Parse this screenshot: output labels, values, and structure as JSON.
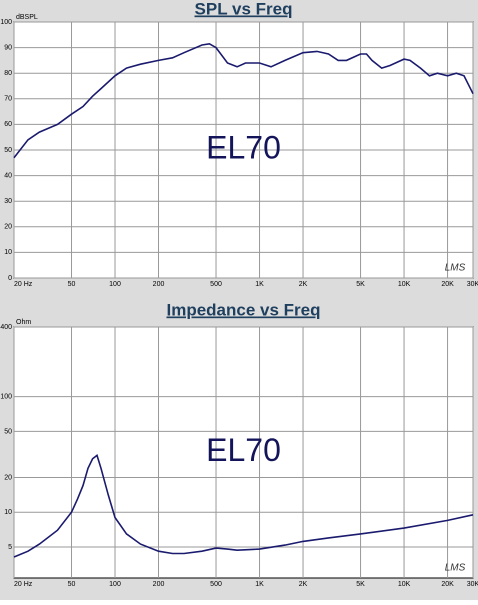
{
  "chart_data": [
    {
      "type": "line",
      "title": "SPL vs Freq",
      "ylabel": "dBSPL",
      "xscale": "log",
      "yscale": "linear",
      "grid": true,
      "xlim": [
        20,
        30000
      ],
      "ylim": [
        0,
        100
      ],
      "xticks": [
        {
          "value": 20,
          "label": "20 Hz"
        },
        50,
        100,
        200,
        500,
        {
          "value": 1000,
          "label": "1K"
        },
        {
          "value": 2000,
          "label": "2K"
        },
        {
          "value": 5000,
          "label": "5K"
        },
        {
          "value": 10000,
          "label": "10K"
        },
        {
          "value": 20000,
          "label": "20K"
        },
        {
          "value": 30000,
          "label": "30K"
        }
      ],
      "yticks": [
        0,
        10,
        20,
        30,
        40,
        50,
        60,
        70,
        80,
        90,
        100
      ],
      "x": [
        20,
        25,
        30,
        40,
        50,
        60,
        70,
        80,
        100,
        120,
        150,
        200,
        250,
        300,
        400,
        450,
        500,
        600,
        700,
        800,
        1000,
        1200,
        1500,
        2000,
        2500,
        3000,
        3500,
        4000,
        5000,
        5500,
        6000,
        7000,
        8000,
        10000,
        11000,
        13000,
        15000,
        17000,
        20000,
        23000,
        26000,
        30000
      ],
      "series": [
        {
          "color": "#1a1a6e",
          "values": [
            47,
            54,
            57,
            60,
            64,
            67,
            71,
            74,
            79,
            82,
            83.5,
            85,
            86,
            88,
            91,
            91.5,
            90,
            84,
            82.5,
            84,
            84,
            82.5,
            85,
            88,
            88.5,
            87.5,
            85,
            85,
            87.5,
            87.5,
            85,
            82,
            83,
            85.5,
            85,
            82,
            79,
            80,
            79,
            80,
            79,
            72
          ]
        }
      ],
      "annotations": [
        "EL70",
        "LMS"
      ]
    },
    {
      "type": "line",
      "title": "Impedance vs Freq",
      "ylabel": "Ohm",
      "xscale": "log",
      "yscale": "log",
      "grid": true,
      "xlim": [
        20,
        30000
      ],
      "ylim": [
        2.7,
        400
      ],
      "xticks": [
        {
          "value": 20,
          "label": "20 Hz"
        },
        50,
        100,
        200,
        500,
        {
          "value": 1000,
          "label": "1K"
        },
        {
          "value": 2000,
          "label": "2K"
        },
        {
          "value": 5000,
          "label": "5K"
        },
        {
          "value": 10000,
          "label": "10K"
        },
        {
          "value": 20000,
          "label": "20K"
        },
        {
          "value": 30000,
          "label": "30K"
        }
      ],
      "yticks": [
        5,
        10,
        20,
        50,
        100,
        400
      ],
      "x": [
        20,
        25,
        30,
        40,
        50,
        55,
        60,
        65,
        70,
        75,
        80,
        90,
        100,
        120,
        150,
        200,
        250,
        300,
        400,
        500,
        600,
        700,
        1000,
        1500,
        2000,
        3000,
        5000,
        10000,
        20000,
        30000
      ],
      "series": [
        {
          "color": "#1a1a6e",
          "values": [
            4.1,
            4.6,
            5.3,
            7,
            10,
            13,
            17,
            24,
            29,
            31,
            24,
            14,
            9,
            6.5,
            5.3,
            4.6,
            4.4,
            4.4,
            4.6,
            4.9,
            4.8,
            4.7,
            4.8,
            5.2,
            5.6,
            6,
            6.5,
            7.3,
            8.5,
            9.5
          ]
        }
      ],
      "annotations": [
        "EL70",
        "LMS"
      ]
    }
  ]
}
